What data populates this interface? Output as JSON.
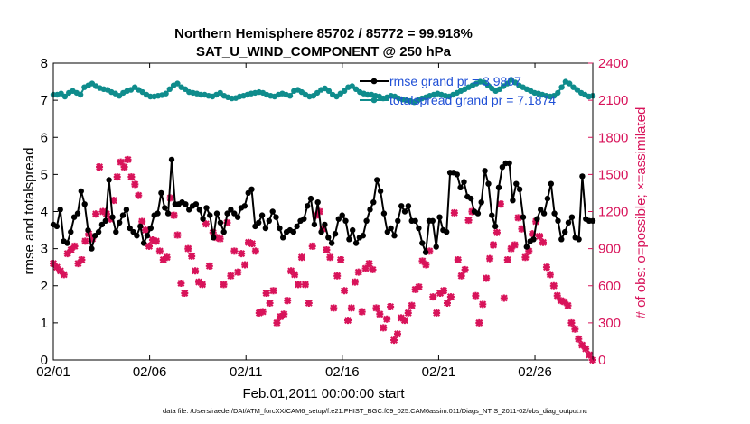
{
  "chart_data": {
    "type": "line",
    "title": [
      "Northern Hemisphere 85702 / 85772 = 99.918%",
      "SAT_U_WIND_COMPONENT @ 250 hPa"
    ],
    "xlabel": "Feb.01,2011 00:00:00 start",
    "ylabel": "rmse and totalspread",
    "ylabel_right": "# of obs: o=possible; ×=assimilated",
    "footnote": "data file: /Users/raeder/DAI/ATM_forcXX/CAM6_setup/f.e21.FHIST_BGC.f09_025.CAM6assim.011/Diags_NTrS_2011-02/obs_diag_output.nc",
    "x_tick_labels": [
      "02/01",
      "02/06",
      "02/11",
      "02/16",
      "02/21",
      "02/26"
    ],
    "x_tick_days": [
      0,
      5,
      10,
      15,
      20,
      25
    ],
    "x_range_days": [
      0,
      28
    ],
    "ylim": [
      0,
      8
    ],
    "ylim_right": [
      0,
      2400
    ],
    "y_ticks": [
      "0",
      "1",
      "2",
      "3",
      "4",
      "5",
      "6",
      "7",
      "8"
    ],
    "y_ticks_right": [
      "0",
      "300",
      "600",
      "900",
      "1200",
      "1500",
      "1800",
      "2100",
      "2400"
    ],
    "grid": false,
    "legend_position": "top-right",
    "series": [
      {
        "name": "rmse grand pr = 3.9807",
        "color": "#000000",
        "axis": "left",
        "values": [
          3.65,
          3.6,
          4.05,
          3.2,
          3.15,
          3.45,
          3.85,
          3.95,
          4.55,
          4.2,
          3.5,
          3.0,
          3.35,
          3.45,
          3.65,
          3.75,
          4.85,
          3.85,
          3.45,
          3.7,
          3.9,
          4.05,
          3.55,
          3.45,
          3.35,
          3.6,
          3.15,
          3.35,
          3.55,
          3.9,
          3.95,
          4.5,
          4.1,
          3.95,
          5.4,
          4.2,
          4.2,
          4.25,
          4.2,
          4.05,
          4.15,
          4.2,
          4.05,
          3.8,
          4.1,
          3.9,
          3.3,
          3.95,
          3.7,
          3.45,
          3.95,
          4.05,
          3.95,
          3.85,
          4.1,
          4.15,
          4.5,
          4.6,
          3.6,
          3.7,
          3.9,
          3.55,
          3.75,
          4.0,
          3.85,
          3.55,
          3.3,
          3.45,
          3.5,
          3.45,
          3.6,
          3.75,
          3.8,
          4.15,
          4.35,
          3.65,
          4.25,
          3.45,
          3.65,
          3.3,
          3.15,
          3.4,
          3.8,
          3.9,
          3.75,
          3.25,
          3.5,
          3.15,
          3.3,
          3.35,
          3.75,
          4.05,
          4.25,
          4.85,
          4.55,
          3.95,
          3.45,
          3.55,
          3.35,
          3.75,
          4.15,
          4.0,
          4.15,
          3.75,
          3.75,
          3.55,
          3.15,
          2.9,
          3.75,
          3.75,
          3.05,
          3.85,
          3.5,
          3.45,
          5.05,
          5.05,
          5.0,
          4.65,
          4.8,
          4.4,
          4.35,
          4.0,
          3.95,
          4.25,
          5.1,
          4.75,
          3.9,
          3.6,
          4.65,
          5.2,
          5.3,
          5.3,
          4.3,
          4.75,
          4.6,
          3.85,
          3.05,
          3.2,
          3.25,
          3.8,
          4.05,
          3.95,
          4.35,
          4.75,
          3.95,
          3.75,
          3.25,
          3.45,
          3.7,
          3.85,
          3.3,
          3.25,
          4.95,
          3.8,
          3.75,
          3.75
        ]
      },
      {
        "name": "totalspread grand pr = 7.1874",
        "color": "#0f8c8c",
        "axis": "left",
        "values": [
          7.15,
          7.15,
          7.18,
          7.1,
          7.2,
          7.25,
          7.2,
          7.15,
          7.35,
          7.4,
          7.45,
          7.38,
          7.33,
          7.3,
          7.28,
          7.22,
          7.18,
          7.12,
          7.2,
          7.25,
          7.28,
          7.35,
          7.28,
          7.22,
          7.15,
          7.1,
          7.1,
          7.12,
          7.14,
          7.18,
          7.3,
          7.4,
          7.45,
          7.35,
          7.3,
          7.22,
          7.2,
          7.18,
          7.15,
          7.15,
          7.12,
          7.1,
          7.15,
          7.2,
          7.12,
          7.08,
          7.05,
          7.06,
          7.1,
          7.12,
          7.15,
          7.18,
          7.2,
          7.22,
          7.2,
          7.15,
          7.12,
          7.1,
          7.15,
          7.18,
          7.15,
          7.12,
          7.25,
          7.28,
          7.22,
          7.15,
          7.1,
          7.12,
          7.2,
          7.28,
          7.32,
          7.25,
          7.15,
          7.1,
          7.18,
          7.25,
          7.35,
          7.38,
          7.3,
          7.22,
          7.18,
          7.15,
          7.15,
          7.12,
          7.1,
          7.05,
          7.08,
          7.12,
          7.1,
          7.05,
          7.02,
          7.0,
          6.98,
          6.95,
          7.0,
          7.05,
          7.08,
          7.12,
          7.15,
          7.18,
          7.15,
          7.12,
          7.1,
          7.15,
          7.2,
          7.25,
          7.3,
          7.35,
          7.4,
          7.45,
          7.5,
          7.48,
          7.4,
          7.32,
          7.25,
          7.3,
          7.38,
          7.45,
          7.55,
          7.48,
          7.4,
          7.35,
          7.3,
          7.25,
          7.2,
          7.18,
          7.15,
          7.12,
          7.1,
          7.12,
          7.2,
          7.35,
          7.5,
          7.45,
          7.35,
          7.28,
          7.2,
          7.15,
          7.1,
          7.12
        ]
      },
      {
        "name": "assimilated",
        "color": "#d8135a",
        "axis": "right",
        "values": [
          780,
          750,
          720,
          690,
          860,
          890,
          920,
          780,
          810,
          960,
          1020,
          980,
          1180,
          1560,
          1200,
          1180,
          1140,
          1290,
          1480,
          1600,
          1560,
          1620,
          1480,
          1420,
          1330,
          1120,
          1050,
          920,
          970,
          960,
          880,
          810,
          830,
          1310,
          1170,
          1010,
          620,
          540,
          900,
          840,
          720,
          630,
          610,
          1100,
          760,
          1030,
          990,
          980,
          610,
          1110,
          680,
          880,
          710,
          860,
          770,
          950,
          940,
          880,
          380,
          390,
          540,
          460,
          560,
          300,
          350,
          370,
          480,
          720,
          690,
          610,
          830,
          610,
          460,
          920,
          1170,
          1200,
          1060,
          890,
          830,
          420,
          680,
          810,
          560,
          320,
          420,
          630,
          710,
          390,
          740,
          780,
          730,
          420,
          370,
          260,
          330,
          430,
          160,
          210,
          340,
          320,
          380,
          440,
          570,
          590,
          800,
          770,
          880,
          510,
          380,
          540,
          560,
          460,
          510,
          1190,
          810,
          680,
          730,
          1130,
          1200,
          520,
          300,
          450,
          660,
          820,
          930,
          1030,
          1260,
          500,
          810,
          900,
          930,
          1150,
          1060,
          830,
          880,
          1020,
          1120,
          1000,
          950,
          750,
          690,
          600,
          520,
          480,
          470,
          440,
          300,
          250,
          170,
          120,
          90,
          40,
          0
        ]
      }
    ]
  }
}
